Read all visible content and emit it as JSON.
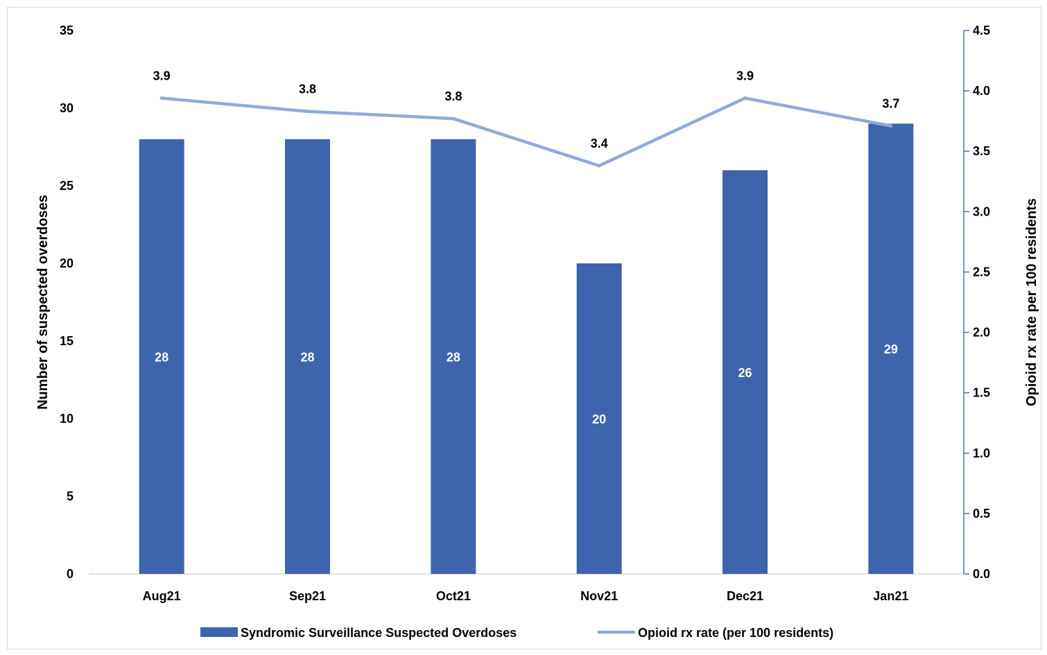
{
  "chart_data": {
    "type": "bar",
    "categories": [
      "Aug21",
      "Sep21",
      "Oct21",
      "Nov21",
      "Dec21",
      "Jan21"
    ],
    "series": [
      {
        "name": "Syndromic Surveillance Suspected Overdoses",
        "type": "bar",
        "axis": "left",
        "values": [
          28,
          28,
          28,
          20,
          26,
          29
        ],
        "labels": [
          "28",
          "28",
          "28",
          "20",
          "26",
          "29"
        ],
        "color": "#3d64ad"
      },
      {
        "name": "Opioid rx rate (per 100 residents)",
        "type": "line",
        "axis": "right",
        "values": [
          3.94,
          3.83,
          3.77,
          3.38,
          3.94,
          3.71
        ],
        "labels": [
          "3.9",
          "3.8",
          "3.8",
          "3.4",
          "3.9",
          "3.7"
        ],
        "color": "#8faadc"
      }
    ],
    "ylabel": "Number of suspected overdoses",
    "ylabel_right": "Opioid rx rate per 100 residents",
    "ylim": [
      0,
      35
    ],
    "ylim_right": [
      0,
      4.5
    ],
    "yticks": [
      "0",
      "5",
      "10",
      "15",
      "20",
      "25",
      "30",
      "35"
    ],
    "yticks_right": [
      "0.0",
      "0.5",
      "1.0",
      "1.5",
      "2.0",
      "2.5",
      "3.0",
      "3.5",
      "4.0",
      "4.5"
    ],
    "grid": false,
    "legend": "bottom"
  }
}
